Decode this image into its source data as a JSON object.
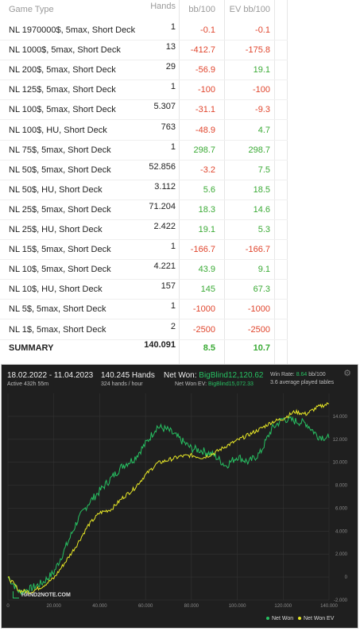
{
  "table": {
    "headers": {
      "game_type": "Game Type",
      "hands": "Hands",
      "bb100": "bb/100",
      "ev_bb100": "EV bb/100"
    },
    "rows": [
      {
        "game": "NL 1970000$, 5max, Short Deck",
        "hands": "1",
        "bb": "-0.1",
        "ev": "-0.1",
        "bb_color": "neg",
        "ev_color": "neg"
      },
      {
        "game": "NL 1000$, 5max, Short Deck",
        "hands": "13",
        "bb": "-412.7",
        "ev": "-175.8",
        "bb_color": "neg",
        "ev_color": "neg"
      },
      {
        "game": "NL 200$, 5max, Short Deck",
        "hands": "29",
        "bb": "-56.9",
        "ev": "19.1",
        "bb_color": "neg",
        "ev_color": "pos"
      },
      {
        "game": "NL 125$, 5max, Short Deck",
        "hands": "1",
        "bb": "-100",
        "ev": "-100",
        "bb_color": "neg",
        "ev_color": "neg"
      },
      {
        "game": "NL 100$, 5max, Short Deck",
        "hands": "5.307",
        "bb": "-31.1",
        "ev": "-9.3",
        "bb_color": "neg",
        "ev_color": "neg"
      },
      {
        "game": "NL 100$, HU, Short Deck",
        "hands": "763",
        "bb": "-48.9",
        "ev": "4.7",
        "bb_color": "neg",
        "ev_color": "pos"
      },
      {
        "game": "NL 75$, 5max, Short Deck",
        "hands": "1",
        "bb": "298.7",
        "ev": "298.7",
        "bb_color": "pos",
        "ev_color": "pos"
      },
      {
        "game": "NL 50$, 5max, Short Deck",
        "hands": "52.856",
        "bb": "-3.2",
        "ev": "7.5",
        "bb_color": "neg",
        "ev_color": "pos"
      },
      {
        "game": "NL 50$, HU, Short Deck",
        "hands": "3.112",
        "bb": "5.6",
        "ev": "18.5",
        "bb_color": "pos",
        "ev_color": "pos"
      },
      {
        "game": "NL 25$, 5max, Short Deck",
        "hands": "71.204",
        "bb": "18.3",
        "ev": "14.6",
        "bb_color": "pos",
        "ev_color": "pos"
      },
      {
        "game": "NL 25$, HU, Short Deck",
        "hands": "2.422",
        "bb": "19.1",
        "ev": "5.3",
        "bb_color": "pos",
        "ev_color": "pos"
      },
      {
        "game": "NL 15$, 5max, Short Deck",
        "hands": "1",
        "bb": "-166.7",
        "ev": "-166.7",
        "bb_color": "neg",
        "ev_color": "neg"
      },
      {
        "game": "NL 10$, 5max, Short Deck",
        "hands": "4.221",
        "bb": "43.9",
        "ev": "9.1",
        "bb_color": "pos",
        "ev_color": "pos"
      },
      {
        "game": "NL 10$, HU, Short Deck",
        "hands": "157",
        "bb": "145",
        "ev": "67.3",
        "bb_color": "pos",
        "ev_color": "pos"
      },
      {
        "game": "NL 5$, 5max, Short Deck",
        "hands": "1",
        "bb": "-1000",
        "ev": "-1000",
        "bb_color": "neg",
        "ev_color": "neg"
      },
      {
        "game": "NL 1$, 5max, Short Deck",
        "hands": "2",
        "bb": "-2500",
        "ev": "-2500",
        "bb_color": "neg",
        "ev_color": "neg"
      }
    ],
    "summary": {
      "label": "SUMMARY",
      "hands": "140.091",
      "bb": "8.5",
      "ev": "10.7"
    }
  },
  "panel": {
    "date_range": "18.02.2022 - 11.04.2023",
    "active": "Active 432h 55m",
    "hands": "140.245 Hands",
    "hands_per_hour": "324 hands / hour",
    "net_won_label": "Net Won:",
    "net_won_value": "BigBlind12,120.62",
    "net_won_ev_label": "Net Won  EV:",
    "net_won_ev_value": "BigBlind15,072.33",
    "win_rate_label": "Win Rate:",
    "win_rate_value": "8.64",
    "win_rate_unit": "bb/100",
    "avg_tables": "3.6 average played tables",
    "logo_text": "HAND2NOTE.COM",
    "gear_icon": "gear-icon"
  },
  "colors": {
    "net_won": "#27c062",
    "net_won_ev": "#e8e826",
    "negative": "#e0452d",
    "positive": "#3aaa35"
  },
  "chart_data": {
    "type": "line",
    "xlim": [
      0,
      140000
    ],
    "ylim": [
      -2000,
      16000
    ],
    "x_ticks": [
      "0",
      "20.000",
      "40.000",
      "60.000",
      "80.000",
      "100.000",
      "120.000",
      "140.000"
    ],
    "y_ticks": [
      "-2.000",
      "0",
      "2.000",
      "4.000",
      "6.000",
      "8.000",
      "10.000",
      "12.000",
      "14.000"
    ],
    "legend": [
      {
        "name": "Net Won",
        "color": "#27c062"
      },
      {
        "name": "Net Won  EV",
        "color": "#e8e826"
      }
    ],
    "x": [
      0,
      5000,
      10000,
      15000,
      20000,
      25000,
      30000,
      35000,
      40000,
      45000,
      50000,
      55000,
      60000,
      65000,
      70000,
      75000,
      80000,
      85000,
      90000,
      95000,
      100000,
      105000,
      110000,
      115000,
      120000,
      125000,
      130000,
      135000,
      140000
    ],
    "series": [
      {
        "name": "Net Won",
        "values": [
          0,
          -1300,
          -1000,
          -500,
          400,
          2500,
          4800,
          6400,
          7500,
          8600,
          9700,
          10300,
          11600,
          13100,
          12800,
          12000,
          11200,
          11000,
          10600,
          9700,
          10500,
          10000,
          10800,
          12900,
          13800,
          13600,
          13400,
          12300,
          12100
        ]
      },
      {
        "name": "Net Won  EV",
        "values": [
          0,
          -1200,
          -1300,
          -800,
          -100,
          1300,
          2800,
          4500,
          5600,
          5900,
          6900,
          7700,
          8900,
          9900,
          10200,
          10500,
          10600,
          10400,
          10800,
          11400,
          11900,
          12400,
          12900,
          13500,
          13800,
          14400,
          14200,
          14800,
          15100
        ]
      }
    ]
  }
}
